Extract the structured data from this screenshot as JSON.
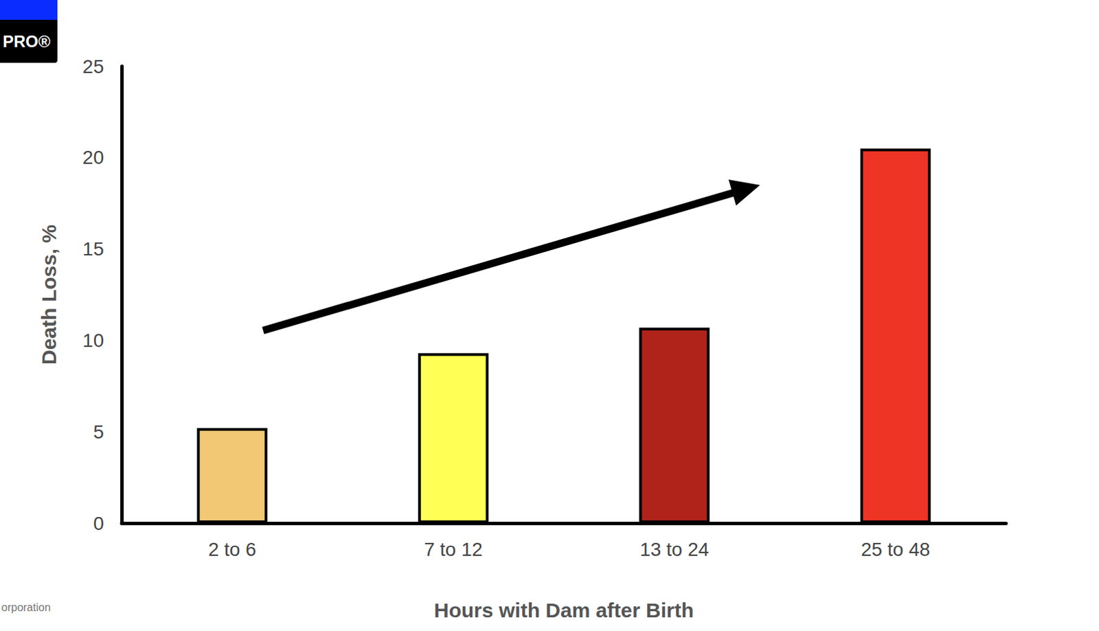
{
  "chart_data": {
    "type": "bar",
    "x_label": "Hours with Dam after Birth",
    "y_label": "Death Loss, %",
    "categories": [
      "2 to 6",
      "7 to 12",
      "13 to 24",
      "25 to 48"
    ],
    "values": [
      5.2,
      9.3,
      10.7,
      20.5
    ],
    "colors": [
      "#f2c874",
      "#ffff55",
      "#b0231a",
      "#ee3424"
    ],
    "ylim": [
      0,
      25
    ],
    "yticks": [
      0,
      5,
      10,
      15,
      20,
      25
    ],
    "grid": false,
    "annotations": [
      "PRO®",
      "orporation"
    ]
  }
}
